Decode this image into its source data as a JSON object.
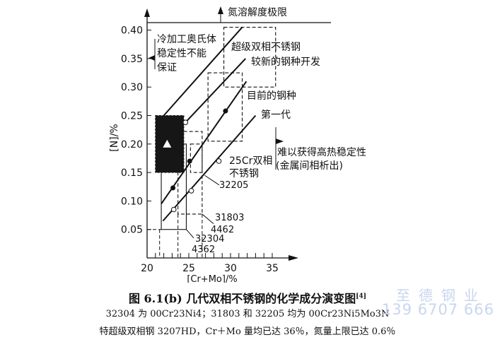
{
  "chart_data": {
    "type": "line",
    "xlabel": "[Cr+Mo]/%",
    "ylabel": "[N]/%",
    "xlim": [
      20,
      36
    ],
    "ylim": [
      0,
      0.42
    ],
    "xticks": [
      "20",
      "25",
      "30",
      "35"
    ],
    "yticks": [
      "0.05",
      "0.10",
      "0.15",
      "0.20",
      "0.25",
      "0.30",
      "0.35",
      "0.40"
    ],
    "series": [
      {
        "x": [
          22.0,
          31.4
        ],
        "y": [
          0.25,
          0.405
        ]
      },
      {
        "x": [
          24.6,
          31.8
        ],
        "y": [
          0.238,
          0.35
        ],
        "markers_open": [
          [
            24.6,
            0.238
          ]
        ]
      },
      {
        "x": [
          21.7,
          31.9
        ],
        "y": [
          0.095,
          0.31
        ],
        "markers_filled": [
          [
            23.1,
            0.123
          ],
          [
            25.1,
            0.17
          ],
          [
            29.4,
            0.258
          ]
        ]
      },
      {
        "x": [
          21.9,
          33.0
        ],
        "y": [
          0.065,
          0.25
        ],
        "markers_open": [
          [
            23.2,
            0.085
          ],
          [
            25.3,
            0.118
          ],
          [
            28.6,
            0.17
          ]
        ]
      }
    ],
    "regions": [
      {
        "label": "超级双相不锈钢",
        "x": [
          29.2,
          35.4
        ],
        "y": [
          0.3,
          0.405
        ],
        "style": "dashed"
      },
      {
        "label": "目前的钢种",
        "x": [
          27.3,
          31.4
        ],
        "y": [
          0.205,
          0.325
        ],
        "style": "dashed"
      },
      {
        "label": "31803 / 4462",
        "x": [
          23.7,
          26.6
        ],
        "y": [
          0.077,
          0.222
        ],
        "style": "dashed"
      },
      {
        "x": [
          25.2,
          26.6
        ],
        "y": [
          0.15,
          0.2
        ],
        "style": "dashed"
      },
      {
        "label": "32304 / 4362",
        "x": [
          21.7,
          24.7
        ],
        "y": [
          0.05,
          0.2
        ],
        "style": "solid"
      },
      {
        "x": [
          21.0,
          24.4
        ],
        "y": [
          0.15,
          0.25
        ],
        "style": "filled-black",
        "marker": "white-triangle",
        "marker_at": [
          22.4,
          0.2
        ]
      }
    ],
    "solubility_limit": {
      "label": "氮溶解度极限",
      "y": 0.42
    },
    "annotations": {
      "cold_work": [
        "冷加工奥氏体",
        "稳定性不能",
        "保证"
      ],
      "super": "超级双相不锈钢",
      "newer": "较新的钢种开发",
      "current": "目前的钢种",
      "first_gen": "第一代",
      "cr25": [
        "25Cr双相",
        "不锈钢"
      ],
      "g32205": "32205",
      "g31803": "31803",
      "g4462": "4462",
      "g32304": "32304",
      "g4362": "4362",
      "hot_stability": [
        "难以获得高热稳定性",
        "(金属间相析出)"
      ]
    }
  },
  "caption": {
    "text": "图 6.1(b)  几代双相不锈钢的化学成分演变图",
    "ref": "[4]"
  },
  "notes": [
    "32304 为 00Cr23Ni4；31803 和 32205 均为 00Cr23Ni5Mo3N",
    "特超级双相钢 3207HD，Cr＋Mo 量均已达 36％，氮量上限已达 0.6％"
  ],
  "watermark": {
    "name": "至德钢业",
    "phone": "139 6707 6667"
  },
  "colors": {
    "ink": "#111111",
    "watermark": "#c9d6ee"
  }
}
